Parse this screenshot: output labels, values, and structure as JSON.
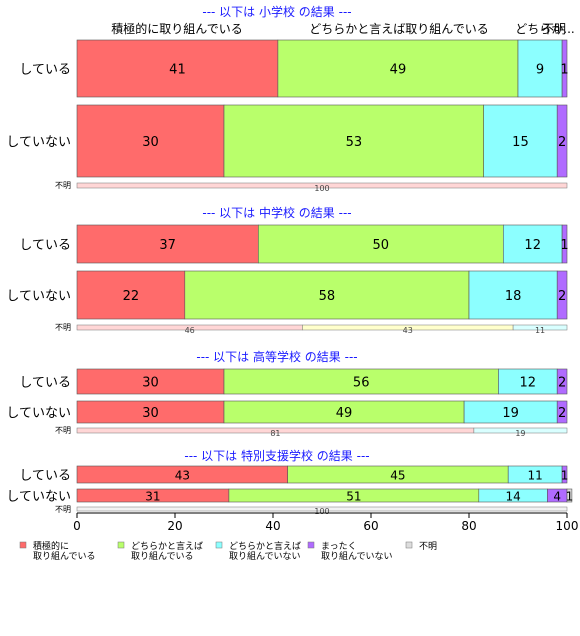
{
  "chart_data": {
    "type": "bar",
    "orientation": "horizontal",
    "stacked": true,
    "xlim": [
      0,
      100
    ],
    "xticks": [
      "0",
      "20",
      "40",
      "60",
      "80",
      "100"
    ],
    "column_headers": [
      "積極的に取り組んでいる",
      "どちらかと言えば取り組んでいる",
      "どちらか...",
      "不明"
    ],
    "legend": {
      "placement": "bottom-left",
      "entries": [
        {
          "label": "積極的に\n取り組んでいる",
          "color": "#ff6b6b"
        },
        {
          "label": "どちらかと言えば\n取り組んでいる",
          "color": "#b9ff6b"
        },
        {
          "label": "どちらかと言えば\n取り組んでいない",
          "color": "#8cffff"
        },
        {
          "label": "まったく\n取り組んでいない",
          "color": "#b06bff"
        },
        {
          "label": "不明",
          "color": "#dddddd"
        }
      ]
    },
    "colors": {
      "red": "#ff6b6b",
      "green": "#b9ff6b",
      "cyan": "#8cffff",
      "purple": "#b06bff",
      "title_blue": "#1a1aff",
      "unk_pink": "#ffd6d6",
      "unk_yellow": "#ffffcc",
      "unk_cyan": "#d9ffff",
      "unk_gray": "#f2f2f2"
    },
    "panels": [
      {
        "title": "--- 以下は 小学校 の結果 ---",
        "rows": [
          {
            "label": "している",
            "values": [
              41,
              49,
              9,
              1
            ]
          },
          {
            "label": "していない",
            "values": [
              30,
              53,
              15,
              2
            ]
          }
        ],
        "unknown": {
          "label": "不明",
          "values": [
            100
          ],
          "labels": [
            "100"
          ],
          "colors": [
            "unk_pink"
          ]
        }
      },
      {
        "title": "--- 以下は 中学校 の結果 ---",
        "rows": [
          {
            "label": "している",
            "values": [
              37,
              50,
              12,
              1
            ]
          },
          {
            "label": "していない",
            "values": [
              22,
              58,
              18,
              2
            ]
          }
        ],
        "unknown": {
          "label": "不明",
          "values": [
            46,
            43,
            11
          ],
          "labels": [
            "46",
            "43",
            "11"
          ],
          "colors": [
            "unk_pink",
            "unk_yellow",
            "unk_cyan"
          ]
        }
      },
      {
        "title": "--- 以下は 高等学校 の結果 ---",
        "rows": [
          {
            "label": "している",
            "values": [
              30,
              56,
              12,
              2
            ]
          },
          {
            "label": "していない",
            "values": [
              30,
              49,
              19,
              2
            ]
          }
        ],
        "unknown": {
          "label": "不明",
          "values": [
            81,
            19
          ],
          "labels": [
            "81",
            "19"
          ],
          "colors": [
            "unk_pink",
            "unk_cyan"
          ]
        }
      },
      {
        "title": "--- 以下は 特別支援学校 の結果 ---",
        "rows": [
          {
            "label": "している",
            "values": [
              43,
              45,
              11,
              1
            ]
          },
          {
            "label": "していない",
            "values": [
              31,
              51,
              14,
              4,
              1
            ]
          }
        ],
        "unknown": {
          "label": "不明",
          "values": [
            100
          ],
          "labels": [
            "100"
          ],
          "colors": [
            "unk_gray"
          ]
        }
      }
    ]
  }
}
